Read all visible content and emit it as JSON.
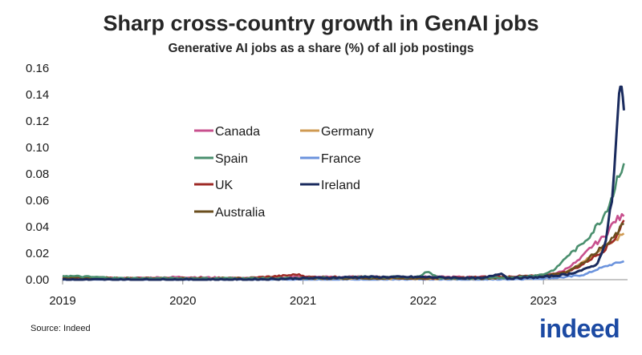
{
  "colors": {
    "Canada": "#c8508e",
    "Germany": "#cf9a52",
    "Spain": "#4a8f6e",
    "France": "#6b93dd",
    "UK": "#9e2a26",
    "Ireland": "#1a2b5e",
    "Australia": "#6a4e1e",
    "logo": "#1c4aa3"
  },
  "chart_data": {
    "type": "line",
    "title": "Sharp cross-country growth in GenAI jobs",
    "subtitle": "Generative AI jobs as a share (%) of all job postings",
    "xlabel": "",
    "ylabel": "",
    "xlim": [
      2019.0,
      2023.7
    ],
    "ylim": [
      0,
      0.16
    ],
    "yticks": [
      "0.00",
      "0.02",
      "0.04",
      "0.06",
      "0.08",
      "0.10",
      "0.12",
      "0.14",
      "0.16"
    ],
    "xticks": [
      "2019",
      "2020",
      "2021",
      "2022",
      "2023"
    ],
    "legend": [
      "Canada",
      "Germany",
      "Spain",
      "France",
      "UK",
      "Ireland",
      "Australia"
    ],
    "series": [
      {
        "name": "Canada",
        "x": [
          2019.0,
          2019.5,
          2020.0,
          2020.5,
          2021.0,
          2021.5,
          2022.0,
          2022.5,
          2022.8,
          2023.0,
          2023.15,
          2023.3,
          2023.4,
          2023.5,
          2023.6,
          2023.67
        ],
        "values": [
          0.001,
          0.001,
          0.002,
          0.001,
          0.002,
          0.002,
          0.002,
          0.002,
          0.002,
          0.003,
          0.006,
          0.015,
          0.025,
          0.032,
          0.045,
          0.048
        ]
      },
      {
        "name": "Germany",
        "x": [
          2019.0,
          2019.5,
          2020.0,
          2020.5,
          2021.0,
          2021.5,
          2022.0,
          2022.5,
          2022.8,
          2023.0,
          2023.15,
          2023.3,
          2023.4,
          2023.5,
          2023.6,
          2023.67
        ],
        "values": [
          0.001,
          0.001,
          0.001,
          0.001,
          0.001,
          0.001,
          0.001,
          0.001,
          0.002,
          0.002,
          0.004,
          0.012,
          0.018,
          0.024,
          0.03,
          0.035
        ]
      },
      {
        "name": "Spain",
        "x": [
          2019.0,
          2019.5,
          2020.0,
          2020.5,
          2021.0,
          2021.5,
          2021.95,
          2022.03,
          2022.08,
          2022.15,
          2022.5,
          2022.8,
          2023.0,
          2023.1,
          2023.2,
          2023.3,
          2023.4,
          2023.5,
          2023.58,
          2023.63,
          2023.67
        ],
        "values": [
          0.003,
          0.001,
          0.001,
          0.001,
          0.001,
          0.002,
          0.002,
          0.006,
          0.004,
          0.001,
          0.001,
          0.002,
          0.004,
          0.008,
          0.018,
          0.025,
          0.035,
          0.048,
          0.065,
          0.082,
          0.088
        ]
      },
      {
        "name": "France",
        "x": [
          2019.0,
          2019.5,
          2020.0,
          2020.5,
          2021.0,
          2021.5,
          2022.0,
          2022.5,
          2023.0,
          2023.2,
          2023.35,
          2023.45,
          2023.55,
          2023.67
        ],
        "values": [
          0.0,
          0.0,
          0.0,
          0.0,
          0.0,
          0.0,
          0.0,
          0.0,
          0.001,
          0.002,
          0.004,
          0.008,
          0.011,
          0.014
        ]
      },
      {
        "name": "UK",
        "x": [
          2019.0,
          2019.5,
          2020.0,
          2020.5,
          2020.85,
          2020.95,
          2021.05,
          2021.5,
          2022.0,
          2022.5,
          2023.0,
          2023.2,
          2023.3,
          2023.4,
          2023.5,
          2023.6,
          2023.67
        ],
        "values": [
          0.002,
          0.001,
          0.001,
          0.001,
          0.003,
          0.004,
          0.002,
          0.002,
          0.001,
          0.002,
          0.003,
          0.006,
          0.01,
          0.016,
          0.022,
          0.032,
          0.045
        ]
      },
      {
        "name": "Ireland",
        "x": [
          2019.0,
          2019.5,
          2020.0,
          2020.5,
          2021.0,
          2021.5,
          2022.0,
          2022.5,
          2022.65,
          2022.7,
          2023.0,
          2023.2,
          2023.35,
          2023.45,
          2023.52,
          2023.57,
          2023.61,
          2023.63,
          2023.65,
          2023.67
        ],
        "values": [
          0.0,
          0.0,
          0.0,
          0.0,
          0.001,
          0.002,
          0.002,
          0.001,
          0.005,
          0.001,
          0.002,
          0.004,
          0.008,
          0.012,
          0.03,
          0.06,
          0.11,
          0.14,
          0.142,
          0.128
        ]
      },
      {
        "name": "Australia",
        "x": [
          2019.0,
          2019.5,
          2020.0,
          2020.5,
          2021.0,
          2021.5,
          2022.0,
          2022.5,
          2022.8,
          2023.0,
          2023.2,
          2023.35,
          2023.45,
          2023.55,
          2023.62,
          2023.67
        ],
        "values": [
          0.002,
          0.001,
          0.001,
          0.001,
          0.001,
          0.001,
          0.001,
          0.001,
          0.002,
          0.003,
          0.006,
          0.014,
          0.022,
          0.028,
          0.036,
          0.042
        ]
      }
    ]
  },
  "footer": {
    "source": "Source: Indeed",
    "logo": "indeed"
  }
}
